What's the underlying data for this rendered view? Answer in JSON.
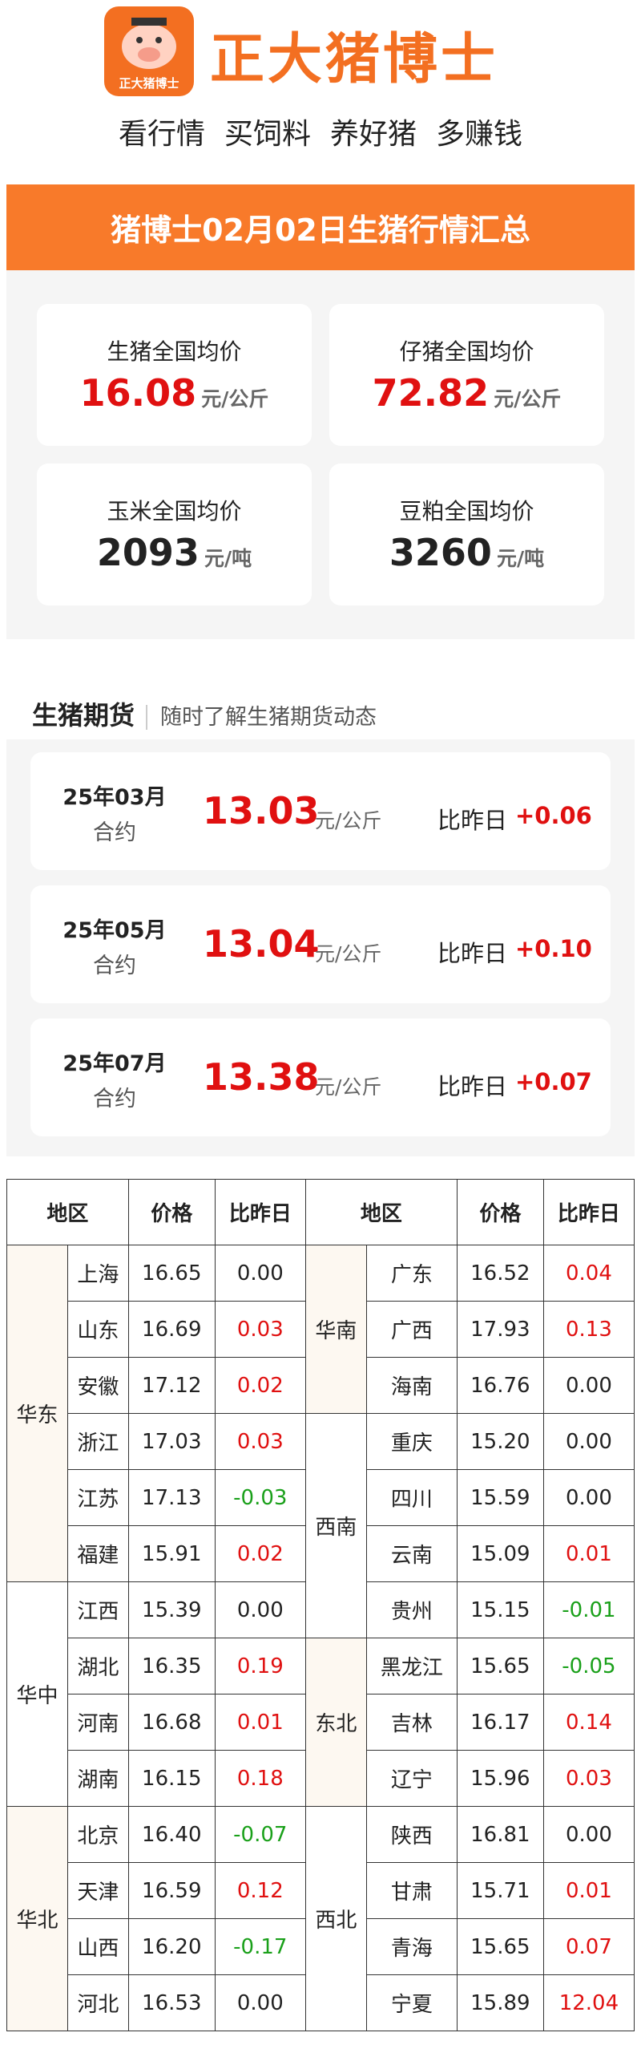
{
  "header": {
    "logo_text": "正大猪博士",
    "brand": "正大猪博士",
    "slogans": [
      "看行情",
      "买饲料",
      "养好猪",
      "多赚钱"
    ]
  },
  "banner": {
    "title": "猪博士02月02日生猪行情汇总"
  },
  "cards": [
    {
      "label": "生猪全国均价",
      "value": "16.08",
      "unit": "元/公斤",
      "red": true
    },
    {
      "label": "仔猪全国均价",
      "value": "72.82",
      "unit": "元/公斤",
      "red": true
    },
    {
      "label": "玉米全国均价",
      "value": "2093",
      "unit": "元/吨",
      "red": false
    },
    {
      "label": "豆粕全国均价",
      "value": "3260",
      "unit": "元/吨",
      "red": false
    }
  ],
  "futures": {
    "title": "生猪期货",
    "subtitle": "随时了解生猪期货动态",
    "rows": [
      {
        "month": "25年03月",
        "contract": "合约",
        "price": "13.03",
        "unit": "元/公斤",
        "compare": "比昨日",
        "change": "+0.06"
      },
      {
        "month": "25年05月",
        "contract": "合约",
        "price": "13.04",
        "unit": "元/公斤",
        "compare": "比昨日",
        "change": "+0.10"
      },
      {
        "month": "25年07月",
        "contract": "合约",
        "price": "13.38",
        "unit": "元/公斤",
        "compare": "比昨日",
        "change": "+0.07"
      }
    ]
  },
  "table": {
    "header": [
      "地区",
      "价格",
      "比昨日",
      "地区",
      "价格",
      "比昨日"
    ],
    "left": [
      {
        "region": "华东",
        "rows": [
          [
            "上海",
            "16.65",
            "0.00"
          ],
          [
            "山东",
            "16.69",
            "0.03"
          ],
          [
            "安徽",
            "17.12",
            "0.02"
          ],
          [
            "浙江",
            "17.03",
            "0.03"
          ],
          [
            "江苏",
            "17.13",
            "-0.03"
          ],
          [
            "福建",
            "15.91",
            "0.02"
          ]
        ]
      },
      {
        "region": "华中",
        "rows": [
          [
            "江西",
            "15.39",
            "0.00"
          ],
          [
            "湖北",
            "16.35",
            "0.19"
          ],
          [
            "河南",
            "16.68",
            "0.01"
          ],
          [
            "湖南",
            "16.15",
            "0.18"
          ]
        ]
      },
      {
        "region": "华北",
        "rows": [
          [
            "北京",
            "16.40",
            "-0.07"
          ],
          [
            "天津",
            "16.59",
            "0.12"
          ],
          [
            "山西",
            "16.20",
            "-0.17"
          ],
          [
            "河北",
            "16.53",
            "0.00"
          ]
        ]
      }
    ],
    "right": [
      {
        "region": "华南",
        "rows": [
          [
            "广东",
            "16.52",
            "0.04"
          ],
          [
            "广西",
            "17.93",
            "0.13"
          ],
          [
            "海南",
            "16.76",
            "0.00"
          ]
        ]
      },
      {
        "region": "西南",
        "rows": [
          [
            "重庆",
            "15.20",
            "0.00"
          ],
          [
            "四川",
            "15.59",
            "0.00"
          ],
          [
            "云南",
            "15.09",
            "0.01"
          ],
          [
            "贵州",
            "15.15",
            "-0.01"
          ]
        ]
      },
      {
        "region": "东北",
        "rows": [
          [
            "黑龙江",
            "15.65",
            "-0.05"
          ],
          [
            "吉林",
            "16.17",
            "0.14"
          ],
          [
            "辽宁",
            "15.96",
            "0.03"
          ]
        ]
      },
      {
        "region": "西北",
        "rows": [
          [
            "陕西",
            "16.81",
            "0.00"
          ],
          [
            "甘肃",
            "15.71",
            "0.01"
          ],
          [
            "青海",
            "15.65",
            "0.07"
          ],
          [
            "宁夏",
            "15.89",
            "12.04"
          ]
        ]
      }
    ]
  }
}
